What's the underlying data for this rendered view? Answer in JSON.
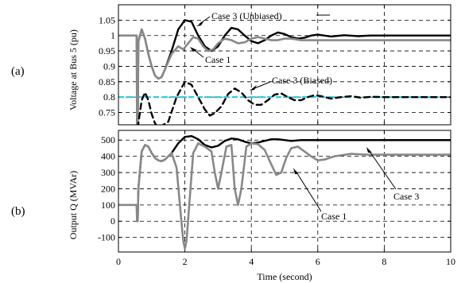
{
  "chart_data": [
    {
      "type": "line",
      "panel_label": "(a)",
      "ylabel": "Voltage at Bus 5 (pu)",
      "xlim": [
        0,
        10
      ],
      "ylim": [
        0.71,
        1.1
      ],
      "yticks": [
        "0.75",
        "0.8",
        "0.85",
        "0.9",
        "0.95",
        "1",
        "1.05"
      ],
      "ytick_values": [
        0.75,
        0.8,
        0.85,
        0.9,
        0.95,
        1.0,
        1.05
      ],
      "grid": true,
      "reference_line": {
        "y": 0.8,
        "color": "#22d3e6"
      },
      "series": [
        {
          "name": "Case 3 (Unbiased)",
          "color": "#000000",
          "dash": "solid",
          "points": [
            [
              0,
              1.0
            ],
            [
              0.55,
              1.0
            ],
            [
              0.56,
              0.7
            ],
            [
              0.58,
              0.7
            ],
            [
              0.6,
              0.98
            ],
            [
              0.7,
              1.02
            ],
            [
              0.8,
              0.99
            ],
            [
              0.9,
              0.94
            ],
            [
              1.0,
              0.9
            ],
            [
              1.1,
              0.87
            ],
            [
              1.2,
              0.86
            ],
            [
              1.3,
              0.865
            ],
            [
              1.4,
              0.89
            ],
            [
              1.6,
              0.95
            ],
            [
              1.8,
              1.02
            ],
            [
              2.0,
              1.05
            ],
            [
              2.2,
              1.045
            ],
            [
              2.4,
              1.0
            ],
            [
              2.6,
              0.965
            ],
            [
              2.8,
              0.95
            ],
            [
              3.0,
              0.965
            ],
            [
              3.2,
              1.0
            ],
            [
              3.4,
              1.025
            ],
            [
              3.6,
              1.02
            ],
            [
              3.8,
              1.0
            ],
            [
              4.0,
              0.982
            ],
            [
              4.2,
              0.975
            ],
            [
              4.4,
              0.985
            ],
            [
              4.6,
              1.0
            ],
            [
              4.8,
              1.01
            ],
            [
              5.0,
              1.005
            ],
            [
              5.2,
              0.995
            ],
            [
              5.4,
              0.99
            ],
            [
              5.6,
              0.993
            ],
            [
              5.8,
              1.0
            ],
            [
              6.0,
              1.003
            ],
            [
              6.4,
              0.997
            ],
            [
              6.8,
              1.001
            ],
            [
              7.2,
              0.998
            ],
            [
              7.6,
              1.0
            ],
            [
              8.0,
              1.0
            ],
            [
              10.0,
              1.0
            ]
          ]
        },
        {
          "name": "Case 1",
          "color": "#888888",
          "dash": "solid",
          "points": [
            [
              0,
              1.0
            ],
            [
              0.55,
              1.0
            ],
            [
              0.56,
              0.7
            ],
            [
              0.58,
              0.7
            ],
            [
              0.6,
              0.98
            ],
            [
              0.7,
              1.02
            ],
            [
              0.8,
              0.99
            ],
            [
              0.9,
              0.94
            ],
            [
              1.0,
              0.9
            ],
            [
              1.1,
              0.87
            ],
            [
              1.2,
              0.86
            ],
            [
              1.3,
              0.865
            ],
            [
              1.4,
              0.89
            ],
            [
              1.6,
              0.94
            ],
            [
              1.8,
              0.965
            ],
            [
              1.95,
              0.955
            ],
            [
              2.1,
              0.975
            ],
            [
              2.25,
              0.995
            ],
            [
              2.4,
              0.99
            ],
            [
              2.55,
              0.965
            ],
            [
              2.7,
              0.95
            ],
            [
              2.85,
              0.955
            ],
            [
              3.0,
              0.975
            ],
            [
              3.2,
              0.99
            ],
            [
              3.4,
              0.985
            ],
            [
              3.6,
              0.975
            ],
            [
              3.8,
              0.978
            ],
            [
              4.0,
              0.99
            ],
            [
              4.2,
              0.995
            ],
            [
              4.4,
              0.99
            ],
            [
              4.6,
              0.985
            ],
            [
              4.8,
              0.985
            ],
            [
              5.0,
              0.99
            ],
            [
              5.2,
              0.99
            ],
            [
              5.5,
              0.985
            ],
            [
              6.0,
              0.985
            ],
            [
              10.0,
              0.985
            ]
          ]
        },
        {
          "name": "Case 3 (Biased)",
          "color": "#000000",
          "dash": "dashed",
          "points": [
            [
              0.58,
              0.7
            ],
            [
              0.7,
              0.79
            ],
            [
              0.8,
              0.815
            ],
            [
              0.9,
              0.79
            ],
            [
              1.0,
              0.745
            ],
            [
              1.1,
              0.715
            ],
            [
              1.2,
              0.7
            ],
            [
              1.5,
              0.72
            ],
            [
              1.75,
              0.8
            ],
            [
              2.0,
              0.85
            ],
            [
              2.2,
              0.84
            ],
            [
              2.4,
              0.8
            ],
            [
              2.6,
              0.76
            ],
            [
              2.75,
              0.74
            ],
            [
              2.9,
              0.748
            ],
            [
              3.1,
              0.77
            ],
            [
              3.3,
              0.81
            ],
            [
              3.5,
              0.828
            ],
            [
              3.7,
              0.815
            ],
            [
              3.9,
              0.79
            ],
            [
              4.1,
              0.775
            ],
            [
              4.3,
              0.775
            ],
            [
              4.5,
              0.79
            ],
            [
              4.7,
              0.808
            ],
            [
              4.9,
              0.812
            ],
            [
              5.1,
              0.8
            ],
            [
              5.3,
              0.79
            ],
            [
              5.5,
              0.79
            ],
            [
              5.7,
              0.8
            ],
            [
              5.9,
              0.806
            ],
            [
              6.1,
              0.803
            ],
            [
              6.4,
              0.795
            ],
            [
              6.7,
              0.8
            ],
            [
              7.0,
              0.803
            ],
            [
              7.3,
              0.798
            ],
            [
              7.6,
              0.801
            ],
            [
              8.0,
              0.8
            ],
            [
              10.0,
              0.8
            ]
          ]
        }
      ],
      "annotations": [
        "Case 3 (Unbiased)",
        "Case 1",
        "Case 3 (Biased)"
      ]
    },
    {
      "type": "line",
      "panel_label": "(b)",
      "ylabel": "Output Q (MVAr)",
      "xlabel": "Time (second)",
      "xlim": [
        0,
        10
      ],
      "ylim": [
        -190,
        560
      ],
      "xticks": [
        "0",
        "2",
        "4",
        "6",
        "8",
        "10"
      ],
      "xtick_values": [
        0,
        2,
        4,
        6,
        8,
        10
      ],
      "yticks": [
        "-100",
        "0",
        "100",
        "200",
        "300",
        "400",
        "500"
      ],
      "ytick_values": [
        -100,
        0,
        100,
        200,
        300,
        400,
        500
      ],
      "grid": true,
      "series": [
        {
          "name": "Case 3",
          "color": "#000000",
          "dash": "solid",
          "points": [
            [
              0,
              100
            ],
            [
              0.55,
              100
            ],
            [
              0.56,
              0
            ],
            [
              0.58,
              0
            ],
            [
              0.6,
              200
            ],
            [
              0.7,
              430
            ],
            [
              0.8,
              470
            ],
            [
              0.9,
              460
            ],
            [
              1.0,
              420
            ],
            [
              1.1,
              390
            ],
            [
              1.2,
              375
            ],
            [
              1.3,
              370
            ],
            [
              1.4,
              380
            ],
            [
              1.6,
              420
            ],
            [
              1.8,
              480
            ],
            [
              2.0,
              520
            ],
            [
              2.2,
              525
            ],
            [
              2.4,
              505
            ],
            [
              2.6,
              470
            ],
            [
              2.8,
              455
            ],
            [
              3.0,
              465
            ],
            [
              3.2,
              495
            ],
            [
              3.4,
              510
            ],
            [
              3.6,
              505
            ],
            [
              3.8,
              490
            ],
            [
              4.0,
              480
            ],
            [
              4.2,
              485
            ],
            [
              4.4,
              495
            ],
            [
              4.6,
              505
            ],
            [
              4.8,
              505
            ],
            [
              5.0,
              500
            ],
            [
              5.2,
              495
            ],
            [
              5.5,
              500
            ],
            [
              6.0,
              500
            ],
            [
              10.0,
              500
            ]
          ]
        },
        {
          "name": "Case 1",
          "color": "#888888",
          "dash": "solid",
          "points": [
            [
              0,
              100
            ],
            [
              0.55,
              100
            ],
            [
              0.56,
              0
            ],
            [
              0.58,
              0
            ],
            [
              0.6,
              200
            ],
            [
              0.7,
              430
            ],
            [
              0.8,
              470
            ],
            [
              0.9,
              460
            ],
            [
              1.0,
              420
            ],
            [
              1.1,
              390
            ],
            [
              1.2,
              375
            ],
            [
              1.3,
              370
            ],
            [
              1.4,
              380
            ],
            [
              1.6,
              420
            ],
            [
              1.75,
              330
            ],
            [
              1.85,
              100
            ],
            [
              1.95,
              -120
            ],
            [
              2.0,
              -170
            ],
            [
              2.05,
              -120
            ],
            [
              2.15,
              150
            ],
            [
              2.25,
              420
            ],
            [
              2.4,
              480
            ],
            [
              2.6,
              460
            ],
            [
              2.8,
              430
            ],
            [
              2.9,
              300
            ],
            [
              3.0,
              200
            ],
            [
              3.1,
              300
            ],
            [
              3.25,
              460
            ],
            [
              3.4,
              470
            ],
            [
              3.5,
              200
            ],
            [
              3.6,
              100
            ],
            [
              3.7,
              200
            ],
            [
              3.85,
              460
            ],
            [
              4.0,
              480
            ],
            [
              4.2,
              475
            ],
            [
              4.4,
              440
            ],
            [
              4.6,
              350
            ],
            [
              4.75,
              285
            ],
            [
              4.9,
              300
            ],
            [
              5.05,
              390
            ],
            [
              5.2,
              450
            ],
            [
              5.4,
              460
            ],
            [
              5.6,
              430
            ],
            [
              5.8,
              400
            ],
            [
              6.0,
              375
            ],
            [
              6.2,
              380
            ],
            [
              6.5,
              400
            ],
            [
              7.0,
              415
            ],
            [
              7.5,
              410
            ],
            [
              8.0,
              410
            ],
            [
              10.0,
              410
            ]
          ]
        }
      ],
      "annotations": [
        "Case 3",
        "Case 1"
      ]
    }
  ]
}
